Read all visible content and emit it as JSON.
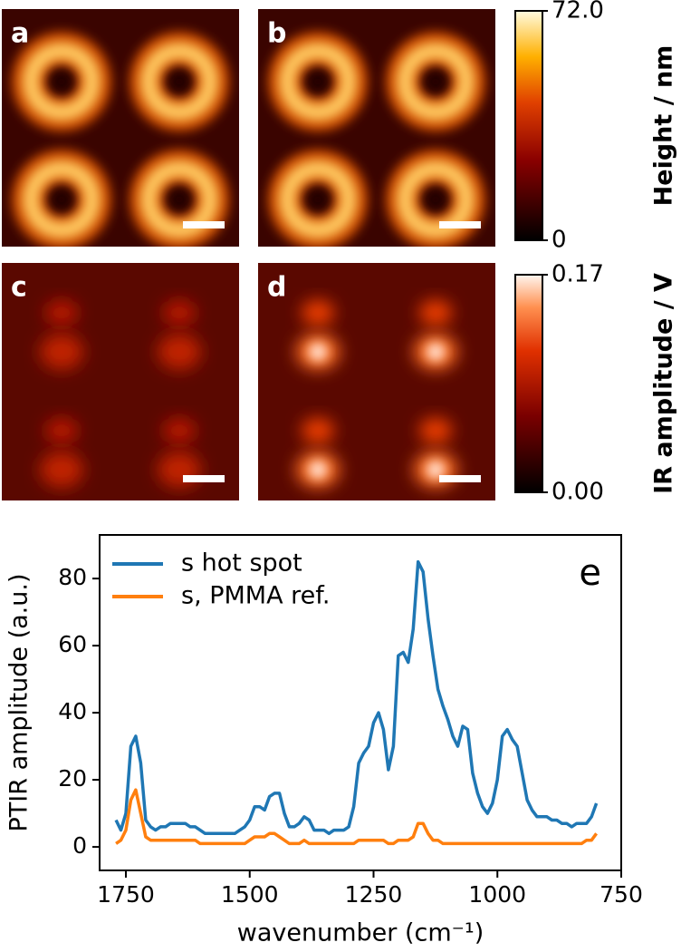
{
  "panels": [
    {
      "letter": "a"
    },
    {
      "letter": "b"
    },
    {
      "letter": "c"
    },
    {
      "letter": "d"
    }
  ],
  "colorbars": [
    {
      "label": "Height / nm",
      "lim": [
        0,
        72
      ],
      "ticks": [
        {
          "value": 72,
          "label": "72.0"
        },
        0
      ]
    },
    {
      "label": "IR amplitude / V",
      "lim": [
        0,
        0.17
      ],
      "ticks": [
        0.17,
        {
          "value": 0,
          "label": "0.00"
        }
      ]
    }
  ],
  "chart_data": {
    "type": "line",
    "panel_label": "e",
    "x_label": "wavenumber (cm⁻¹)",
    "y_label": "PTIR amplitude (a.u.)",
    "xlim": [
      1803,
      750
    ],
    "ylim": [
      -7,
      93
    ],
    "xticks": [
      1750,
      1500,
      1250,
      1000,
      750
    ],
    "yticks": [
      0,
      20,
      40,
      60,
      80
    ],
    "legend": "upper left",
    "x": [
      1770,
      1760,
      1750,
      1740,
      1730,
      1720,
      1710,
      1700,
      1690,
      1680,
      1670,
      1660,
      1650,
      1640,
      1630,
      1620,
      1610,
      1600,
      1590,
      1580,
      1570,
      1560,
      1550,
      1540,
      1530,
      1520,
      1510,
      1500,
      1490,
      1480,
      1470,
      1460,
      1450,
      1440,
      1430,
      1420,
      1410,
      1400,
      1390,
      1380,
      1370,
      1360,
      1350,
      1340,
      1330,
      1320,
      1310,
      1300,
      1290,
      1280,
      1270,
      1260,
      1250,
      1240,
      1230,
      1220,
      1210,
      1200,
      1190,
      1180,
      1170,
      1160,
      1150,
      1140,
      1130,
      1120,
      1110,
      1100,
      1090,
      1080,
      1070,
      1060,
      1050,
      1040,
      1030,
      1020,
      1010,
      1000,
      990,
      980,
      970,
      960,
      950,
      940,
      930,
      920,
      910,
      900,
      890,
      880,
      870,
      860,
      850,
      840,
      830,
      820,
      810,
      800
    ],
    "series": [
      {
        "name": "s hot spot",
        "color": "#1f77b4",
        "values": [
          8,
          5,
          10,
          30,
          33,
          25,
          8,
          6,
          5,
          6,
          6,
          7,
          7,
          7,
          7,
          6,
          6,
          5,
          4,
          4,
          4,
          4,
          4,
          4,
          4,
          5,
          6,
          8,
          12,
          12,
          11,
          15,
          16,
          16,
          10,
          6,
          6,
          7,
          9,
          8,
          5,
          5,
          5,
          4,
          5,
          5,
          5,
          6,
          12,
          25,
          28,
          30,
          37,
          40,
          35,
          23,
          30,
          57,
          58,
          55,
          65,
          85,
          82,
          68,
          57,
          47,
          42,
          38,
          33,
          30,
          36,
          35,
          22,
          16,
          12,
          10,
          13,
          20,
          33,
          35,
          32,
          30,
          22,
          14,
          11,
          9,
          9,
          9,
          8,
          8,
          7,
          7,
          6,
          7,
          7,
          7,
          9,
          13
        ]
      },
      {
        "name": "s, PMMA ref.",
        "color": "#ff7f0e",
        "values": [
          1,
          2,
          5,
          14,
          17,
          10,
          3,
          2,
          2,
          2,
          2,
          2,
          2,
          2,
          2,
          2,
          2,
          1,
          1,
          1,
          1,
          1,
          1,
          1,
          1,
          1,
          1,
          2,
          3,
          3,
          3,
          4,
          4,
          3,
          2,
          1,
          1,
          1,
          2,
          1,
          1,
          1,
          1,
          1,
          1,
          1,
          1,
          1,
          1,
          2,
          2,
          2,
          2,
          2,
          2,
          1,
          1,
          2,
          2,
          2,
          3,
          7,
          7,
          4,
          2,
          2,
          1,
          1,
          1,
          1,
          1,
          1,
          1,
          1,
          1,
          1,
          1,
          1,
          1,
          1,
          1,
          1,
          1,
          1,
          1,
          1,
          1,
          1,
          1,
          1,
          1,
          1,
          1,
          1,
          1,
          2,
          2,
          4
        ]
      }
    ]
  }
}
